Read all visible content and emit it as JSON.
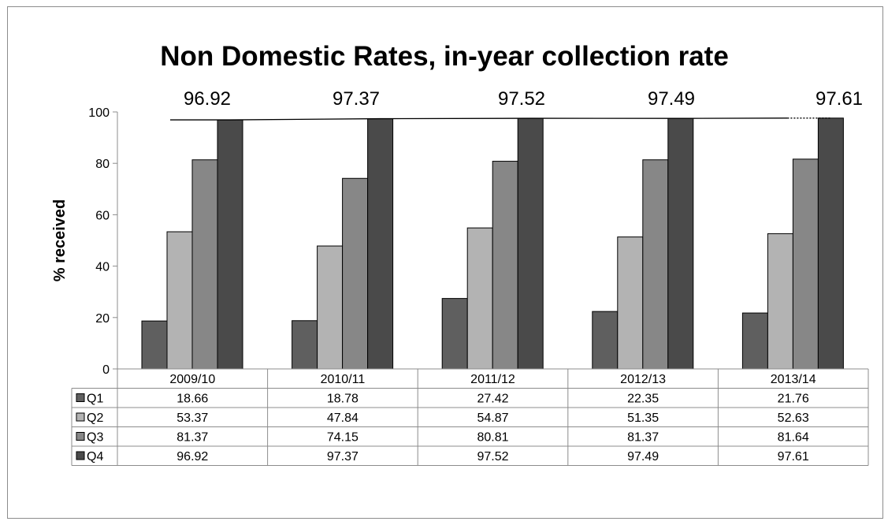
{
  "chart_data": {
    "type": "bar",
    "title": "Non Domestic Rates, in-year collection rate",
    "xlabel": "",
    "ylabel": "% received",
    "ylim": [
      0,
      100
    ],
    "yticks": [
      0,
      20,
      40,
      60,
      80,
      100
    ],
    "categories": [
      "2009/10",
      "2010/11",
      "2011/12",
      "2012/13",
      "2013/14"
    ],
    "series": [
      {
        "name": "Q1",
        "color": "#5f5f5f",
        "values": [
          18.66,
          18.78,
          27.42,
          22.35,
          21.76
        ]
      },
      {
        "name": "Q2",
        "color": "#b3b3b3",
        "values": [
          53.37,
          47.84,
          54.87,
          51.35,
          52.63
        ]
      },
      {
        "name": "Q3",
        "color": "#878787",
        "values": [
          81.37,
          74.15,
          80.81,
          81.37,
          81.64
        ]
      },
      {
        "name": "Q4",
        "color": "#4a4a4a",
        "values": [
          96.92,
          97.37,
          97.52,
          97.49,
          97.61
        ]
      }
    ],
    "top_labels": [
      "96.92",
      "97.37",
      "97.52",
      "97.49",
      "97.61"
    ],
    "table": {
      "rows": [
        {
          "label": "Q1",
          "cells": [
            "18.66",
            "18.78",
            "27.42",
            "22.35",
            "21.76"
          ]
        },
        {
          "label": "Q2",
          "cells": [
            "53.37",
            "47.84",
            "54.87",
            "51.35",
            "52.63"
          ]
        },
        {
          "label": "Q3",
          "cells": [
            "81.37",
            "74.15",
            "80.81",
            "81.37",
            "81.64"
          ]
        },
        {
          "label": "Q4",
          "cells": [
            "96.92",
            "97.37",
            "97.52",
            "97.49",
            "97.61"
          ]
        }
      ]
    },
    "trend_line": true,
    "grid": false,
    "legend": "data-table"
  }
}
